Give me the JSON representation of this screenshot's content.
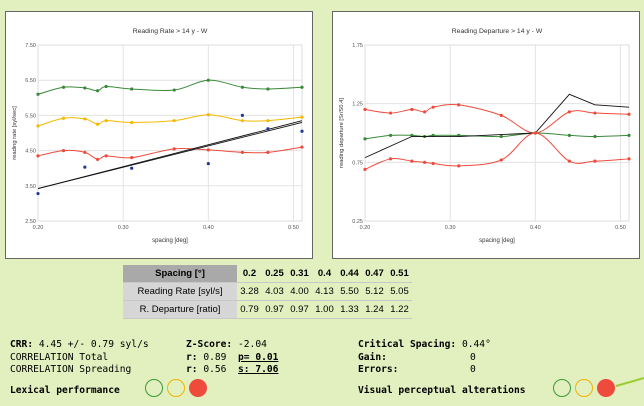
{
  "colors": {
    "background": "#e2efbe",
    "green": "#3a8a3a",
    "orange": "#f5b800",
    "red": "#ef4b3d",
    "black": "#111111",
    "blue": "#1f3a93"
  },
  "chart_data": [
    {
      "type": "line",
      "title": "Reading Rate > 14 y - W",
      "xlabel": "spacing [deg]",
      "ylabel": "reading rate [syl/sec]",
      "xlim": [
        0.2,
        0.51
      ],
      "ylim": [
        2.5,
        7.5
      ],
      "xticks": [
        "0.20",
        "0.30",
        "0.40",
        "0.50"
      ],
      "yticks": [
        "2.50",
        "3.50",
        "4.50",
        "5.50",
        "6.50",
        "7.50"
      ],
      "grid": true,
      "series": [
        {
          "color": "green",
          "x": [
            0.2,
            0.23,
            0.255,
            0.27,
            0.28,
            0.31,
            0.36,
            0.4,
            0.44,
            0.47,
            0.51
          ],
          "y": [
            6.1,
            6.3,
            6.28,
            6.2,
            6.32,
            6.25,
            6.22,
            6.5,
            6.3,
            6.25,
            6.3
          ]
        },
        {
          "color": "orange",
          "x": [
            0.2,
            0.23,
            0.255,
            0.27,
            0.28,
            0.31,
            0.36,
            0.4,
            0.44,
            0.47,
            0.51
          ],
          "y": [
            5.2,
            5.42,
            5.4,
            5.25,
            5.35,
            5.3,
            5.35,
            5.52,
            5.35,
            5.35,
            5.45
          ]
        },
        {
          "color": "red",
          "x": [
            0.2,
            0.23,
            0.255,
            0.27,
            0.28,
            0.31,
            0.36,
            0.4,
            0.44,
            0.47,
            0.51
          ],
          "y": [
            4.35,
            4.5,
            4.45,
            4.25,
            4.35,
            4.3,
            4.55,
            4.52,
            4.45,
            4.45,
            4.6
          ]
        },
        {
          "color": "black",
          "x": [
            0.2,
            0.51
          ],
          "y": [
            3.42,
            5.35
          ]
        },
        {
          "color": "black",
          "x": [
            0.2,
            0.51
          ],
          "y": [
            3.42,
            5.3
          ]
        }
      ],
      "points": {
        "color": "blue",
        "x": [
          0.2,
          0.255,
          0.31,
          0.4,
          0.44,
          0.47,
          0.51
        ],
        "y": [
          3.28,
          4.03,
          4.0,
          4.13,
          5.5,
          5.12,
          5.05
        ]
      }
    },
    {
      "type": "line",
      "title": "Reading Departure > 14 y - W",
      "xlabel": "spacing [deg]",
      "ylabel": "reading departure [Sr/S0.4]",
      "xlim": [
        0.2,
        0.51
      ],
      "ylim": [
        0.25,
        1.75
      ],
      "xticks": [
        "0.20",
        "0.30",
        "0.40",
        "0.50"
      ],
      "yticks": [
        "0.25",
        "0.75",
        "1.25",
        "1.75"
      ],
      "grid": true,
      "series": [
        {
          "color": "red",
          "x": [
            0.2,
            0.23,
            0.255,
            0.27,
            0.28,
            0.31,
            0.36,
            0.4,
            0.44,
            0.47,
            0.51
          ],
          "y": [
            1.2,
            1.17,
            1.2,
            1.18,
            1.22,
            1.24,
            1.15,
            1.0,
            1.18,
            1.17,
            1.16
          ]
        },
        {
          "color": "green",
          "x": [
            0.2,
            0.23,
            0.255,
            0.27,
            0.28,
            0.31,
            0.36,
            0.4,
            0.44,
            0.47,
            0.51
          ],
          "y": [
            0.95,
            0.98,
            0.98,
            0.97,
            0.98,
            0.98,
            0.97,
            1.0,
            0.98,
            0.97,
            0.98
          ]
        },
        {
          "color": "black",
          "x": [
            0.2,
            0.255,
            0.31,
            0.4,
            0.44,
            0.47,
            0.51
          ],
          "y": [
            0.79,
            0.97,
            0.97,
            1.0,
            1.33,
            1.24,
            1.22
          ]
        },
        {
          "color": "red",
          "x": [
            0.2,
            0.23,
            0.255,
            0.27,
            0.28,
            0.31,
            0.36,
            0.4,
            0.44,
            0.47,
            0.51
          ],
          "y": [
            0.69,
            0.78,
            0.76,
            0.75,
            0.74,
            0.72,
            0.77,
            1.0,
            0.76,
            0.76,
            0.78
          ]
        }
      ]
    }
  ],
  "table": {
    "header": "Spacing [°]",
    "cols": [
      "0.2",
      "0.25",
      "0.31",
      "0.4",
      "0.44",
      "0.47",
      "0.51"
    ],
    "rows": [
      {
        "label": "Reading Rate [syl/s]",
        "values": [
          "3.28",
          "4.03",
          "4.00",
          "4.13",
          "5.50",
          "5.12",
          "5.05"
        ]
      },
      {
        "label": "R. Departure [ratio]",
        "values": [
          "0.79",
          "0.97",
          "0.97",
          "1.00",
          "1.33",
          "1.24",
          "1.22"
        ]
      }
    ]
  },
  "stats": {
    "crr_label": "CRR:",
    "crr_value": " 4.45 +/- 0.79 syl/s",
    "corr_total": "CORRELATION Total",
    "corr_spreading": "CORRELATION Spreading",
    "z_label": "Z-Score:",
    "z_value": " -2.04",
    "r1_label": "r:",
    "r1_value": " 0.89  ",
    "p_label": "p= 0.01",
    "r2_label": "r:",
    "r2_value": " 0.56  ",
    "s_label": "s: 7.06",
    "critical_label": "Critical Spacing:",
    "critical_value": " 0.44°",
    "gain_label": "Gain:",
    "gain_value": "0",
    "errors_label": "Errors:",
    "errors_value": "0",
    "lexical_label": "Lexical performance",
    "visual_label": "Visual perceptual alterations"
  }
}
